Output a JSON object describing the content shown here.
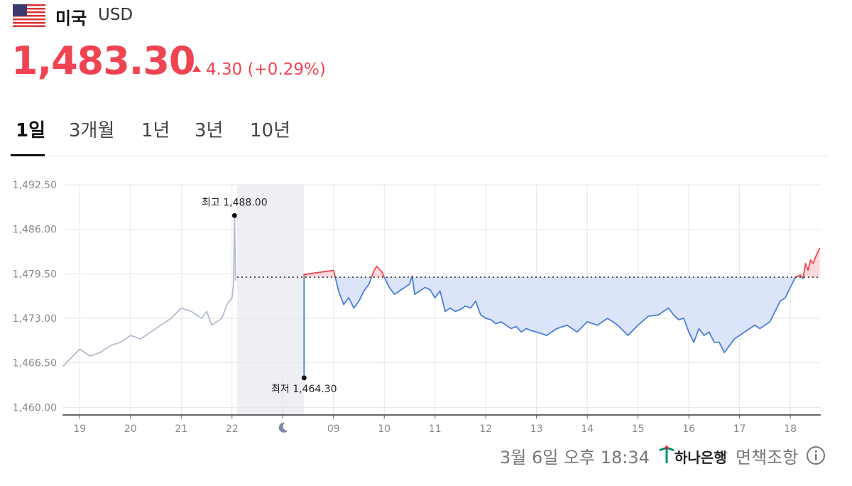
{
  "header": {
    "country": "미국",
    "currency": "USD",
    "price": "1,483.30",
    "change": "4.30 (+0.29%)"
  },
  "tabs": [
    "1일",
    "3개월",
    "1년",
    "3년",
    "10년"
  ],
  "chart_data": {
    "type": "line",
    "xlim": [
      -0.34,
      14.6
    ],
    "ylim": [
      1459,
      1492.5
    ],
    "xticks": [
      {
        "value": 0,
        "label": "19"
      },
      {
        "value": 1,
        "label": "20"
      },
      {
        "value": 2,
        "label": "21"
      },
      {
        "value": 3,
        "label": "22"
      },
      {
        "value": 4,
        "label": null
      },
      {
        "value": 5,
        "label": "09"
      },
      {
        "value": 6,
        "label": "10"
      },
      {
        "value": 7,
        "label": "11"
      },
      {
        "value": 8,
        "label": "12"
      },
      {
        "value": 9,
        "label": "13"
      },
      {
        "value": 10,
        "label": "14"
      },
      {
        "value": 11,
        "label": "15"
      },
      {
        "value": 12,
        "label": "16"
      },
      {
        "value": 13,
        "label": "17"
      },
      {
        "value": 14,
        "label": "18"
      }
    ],
    "yticks": [
      {
        "value": 1460,
        "label": "1,460.00"
      },
      {
        "value": 1466.5,
        "label": "1,466.50"
      },
      {
        "value": 1473,
        "label": "1,473.00"
      },
      {
        "value": 1479.5,
        "label": "1,479.50"
      },
      {
        "value": 1486,
        "label": "1,486.00"
      },
      {
        "value": 1492.5,
        "label": "1,492.50"
      }
    ],
    "grid": true,
    "reference": 1479,
    "shaded_xrange": [
      3.1,
      4.42
    ],
    "up_color": "#f04452",
    "down_color": "#4a7fd9",
    "up_fill": "#fcd9dc",
    "down_fill": "#dbe4f9",
    "series": [
      {
        "color": "#b4bccf",
        "x": [
          -0.33,
          -0.2,
          0,
          0.2,
          0.4,
          0.6,
          0.8,
          1,
          1.2,
          1.4,
          1.6,
          1.8,
          2,
          2.2,
          2.4,
          2.5,
          2.6,
          2.8,
          2.9,
          3,
          3.03,
          3.05,
          3.07
        ],
        "values": [
          1466,
          1467,
          1468.5,
          1467.5,
          1468,
          1469,
          1469.5,
          1470.5,
          1470,
          1471,
          1472,
          1473,
          1474.5,
          1474,
          1473,
          1474,
          1472,
          1473,
          1475,
          1476,
          1478,
          1488,
          1478.5
        ]
      },
      {
        "x": [
          4.42,
          4.42,
          5,
          5.1,
          5.2,
          5.3,
          5.4,
          5.5,
          5.6,
          5.7,
          5.8,
          5.85,
          5.95,
          6,
          6.1,
          6.2,
          6.3,
          6.4,
          6.5,
          6.55,
          6.6,
          6.7,
          6.8,
          6.9,
          7,
          7.1,
          7.2,
          7.3,
          7.4,
          7.5,
          7.6,
          7.7,
          7.8,
          7.9,
          8,
          8.1,
          8.2,
          8.3,
          8.4,
          8.5,
          8.6,
          8.7,
          8.8,
          8.9,
          9,
          9.2,
          9.4,
          9.6,
          9.8,
          10,
          10.2,
          10.4,
          10.6,
          10.8,
          11,
          11.2,
          11.4,
          11.6,
          11.7,
          11.8,
          11.9,
          12,
          12.1,
          12.2,
          12.3,
          12.4,
          12.5,
          12.6,
          12.7,
          12.8,
          12.9,
          13,
          13.1,
          13.2,
          13.3,
          13.4,
          13.5,
          13.6,
          13.7,
          13.8,
          13.9,
          14,
          14.1,
          14.2,
          14.25,
          14.3,
          14.35,
          14.4,
          14.45,
          14.5,
          14.58
        ],
        "values": [
          1464.3,
          1479.4,
          1480,
          1477,
          1475,
          1476,
          1474.5,
          1475.5,
          1477,
          1478,
          1480,
          1480.6,
          1479.8,
          1479,
          1477.5,
          1476.5,
          1477,
          1477.5,
          1478,
          1479.2,
          1476.5,
          1477,
          1477.5,
          1477.2,
          1476,
          1477,
          1474,
          1474.5,
          1474,
          1474.3,
          1474.8,
          1474.5,
          1475.5,
          1473.5,
          1473,
          1472.8,
          1472.2,
          1472.5,
          1472,
          1471.5,
          1471.8,
          1471,
          1471.5,
          1471.2,
          1471,
          1470.5,
          1471.5,
          1472,
          1471,
          1472.5,
          1472,
          1473,
          1472,
          1470.5,
          1472,
          1473.3,
          1473.5,
          1474.5,
          1473.5,
          1472.8,
          1473,
          1471,
          1469.5,
          1471.5,
          1470.5,
          1471,
          1469.5,
          1469.5,
          1468,
          1469,
          1470,
          1470.5,
          1471,
          1471.5,
          1472,
          1471.5,
          1472,
          1472.5,
          1474,
          1475.5,
          1476,
          1477.5,
          1479,
          1479.3,
          1478.8,
          1481,
          1480,
          1481.5,
          1481,
          1482,
          1483.3
        ]
      }
    ],
    "annotations": [
      {
        "label": "최고 1,488.00",
        "x": 3.05,
        "value": 1488
      },
      {
        "label": "최저 1,464.30",
        "x": 4.42,
        "value": 1464.3
      }
    ]
  },
  "footer": {
    "timestamp": "3월 6일 오후 18:34",
    "bank": "하나은행",
    "separator": "·",
    "disclaimer": "면책조항"
  }
}
